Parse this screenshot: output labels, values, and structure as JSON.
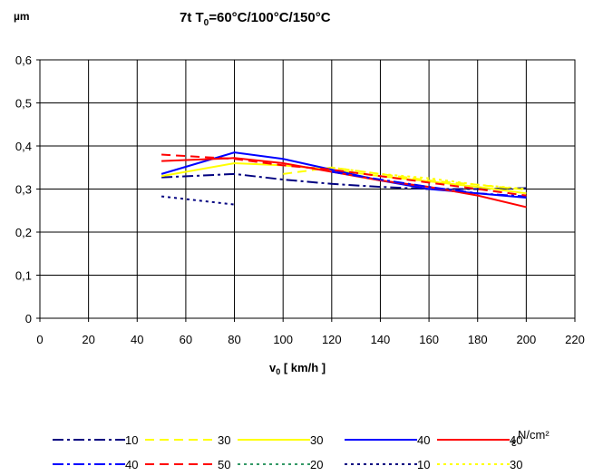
{
  "chart_data": {
    "type": "line",
    "title": "7t T",
    "title_sub": "0",
    "title_rest": "=60°C/100°C/150°C",
    "ylabel": "µm",
    "xlabel_main": "v",
    "xlabel_sub": "0",
    "xlabel_rest": " [ km/h ]",
    "unit_label": "N/cm²",
    "unit_symbol": "ε",
    "xlim": [
      0,
      220
    ],
    "ylim": [
      0,
      0.6
    ],
    "x_ticks": [
      0,
      20,
      40,
      60,
      80,
      100,
      120,
      140,
      160,
      180,
      200,
      220
    ],
    "x_tick_labels": [
      "0",
      "20",
      "40",
      "60",
      "80",
      "100",
      "120",
      "140",
      "160",
      "180",
      "200",
      "220"
    ],
    "y_ticks": [
      0,
      0.1,
      0.2,
      0.3,
      0.4,
      0.5,
      0.6
    ],
    "y_tick_labels": [
      "0",
      "0,1",
      "0,2",
      "0,3",
      "0,4",
      "0,5",
      "0,6"
    ],
    "grid": true,
    "legend_position": "bottom",
    "series": [
      {
        "name": "10",
        "color": "#000080",
        "dash": "12,4,3,4",
        "width": 2,
        "x": [
          50,
          80,
          100,
          120,
          140,
          160,
          180,
          200
        ],
        "y": [
          0.327,
          0.335,
          0.322,
          0.312,
          0.305,
          0.3,
          0.3,
          0.302
        ]
      },
      {
        "name": "30",
        "color": "#ffff00",
        "dash": "10,6",
        "width": 2,
        "x": [
          100,
          120,
          140,
          160,
          180,
          200
        ],
        "y": [
          0.335,
          0.35,
          0.335,
          0.32,
          0.31,
          0.298
        ]
      },
      {
        "name": "30",
        "color": "#ffff00",
        "dash": "",
        "width": 2,
        "x": [
          50,
          80,
          100,
          120,
          140,
          160,
          180,
          200
        ],
        "y": [
          0.33,
          0.36,
          0.355,
          0.345,
          0.33,
          0.318,
          0.305,
          0.29
        ]
      },
      {
        "name": "40",
        "color": "#0000ff",
        "dash": "",
        "width": 2,
        "x": [
          50,
          65,
          80,
          100,
          120,
          140,
          160,
          180,
          200
        ],
        "y": [
          0.335,
          0.36,
          0.385,
          0.37,
          0.345,
          0.32,
          0.3,
          0.29,
          0.28
        ]
      },
      {
        "name": "40",
        "color": "#ff0000",
        "dash": "",
        "width": 2,
        "x": [
          50,
          80,
          100,
          120,
          140,
          160,
          180,
          200
        ],
        "y": [
          0.365,
          0.372,
          0.36,
          0.34,
          0.32,
          0.305,
          0.285,
          0.258
        ]
      },
      {
        "name": "40",
        "color": "#0000ff",
        "dash": "12,4,3,4",
        "width": 2,
        "x": [
          120,
          140,
          160,
          180,
          200
        ],
        "y": [
          0.34,
          0.322,
          0.305,
          0.29,
          0.283
        ]
      },
      {
        "name": "50",
        "color": "#ff0000",
        "dash": "10,6",
        "width": 2,
        "x": [
          50,
          80,
          100,
          120,
          140,
          160,
          180,
          200
        ],
        "y": [
          0.38,
          0.37,
          0.355,
          0.345,
          0.33,
          0.315,
          0.3,
          0.285
        ]
      },
      {
        "name": "20",
        "color": "#339966",
        "dash": "3,4",
        "width": 2,
        "x": [],
        "y": []
      },
      {
        "name": "10",
        "color": "#000080",
        "dash": "3,4",
        "width": 2,
        "x": [
          50,
          80
        ],
        "y": [
          0.283,
          0.264
        ]
      },
      {
        "name": "30",
        "color": "#ffff00",
        "dash": "3,4",
        "width": 2,
        "x": [
          120,
          140,
          160,
          180,
          200
        ],
        "y": [
          0.35,
          0.335,
          0.325,
          0.31,
          0.3
        ]
      }
    ]
  }
}
